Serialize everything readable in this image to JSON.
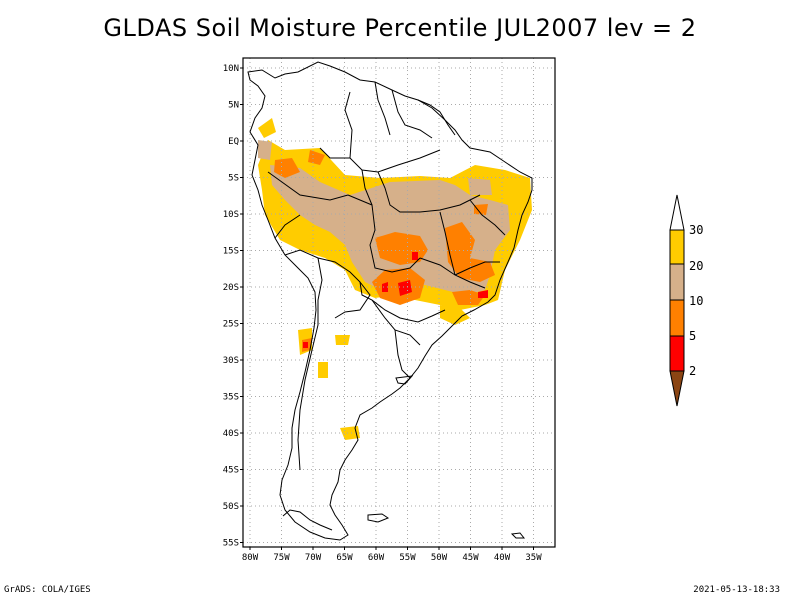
{
  "title": "GLDAS Soil Moisture Percentile JUL2007 lev = 2",
  "map": {
    "region": "South America",
    "lat_labels": [
      "10N",
      "5N",
      "EQ",
      "5S",
      "10S",
      "15S",
      "20S",
      "25S",
      "30S",
      "35S",
      "40S",
      "45S",
      "50S",
      "55S"
    ],
    "lon_labels": [
      "80W",
      "75W",
      "70W",
      "65W",
      "60W",
      "55W",
      "50W",
      "45W",
      "40W",
      "35W"
    ],
    "lon_range": [
      -81,
      -32
    ],
    "lat_range": [
      -56,
      12
    ],
    "grid": "dotted"
  },
  "colorbar": {
    "labels": [
      "30",
      "20",
      "10",
      "5",
      "2"
    ],
    "colors": {
      "above_30": "#ffffff",
      "20_30": "#ffcc00",
      "10_20": "#d6b08a",
      "5_10": "#ff8000",
      "2_5": "#ff0000",
      "below_2": "#8b4513"
    }
  },
  "footer": {
    "left": "GrADS: COLA/IGES",
    "right": "2021-05-13-18:33"
  }
}
